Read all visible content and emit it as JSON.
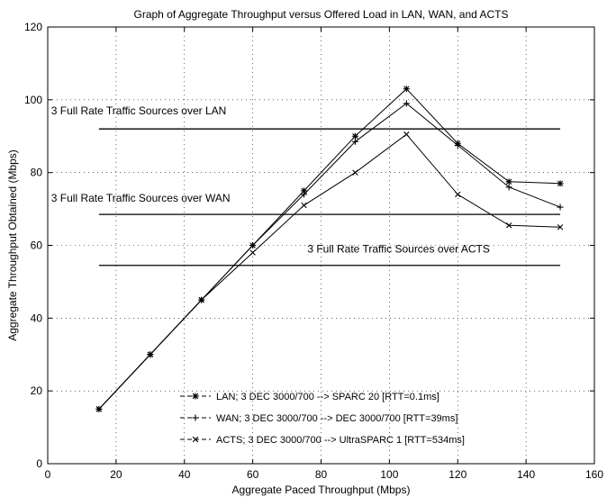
{
  "chart_data": {
    "type": "line",
    "title": "Graph of Aggregate Throughput versus Offered Load in LAN, WAN, and ACTS",
    "xlabel": "Aggregate Paced Throughput (Mbps)",
    "ylabel": "Aggregate Throughput Obtained (Mbps)",
    "xlim": [
      0,
      160
    ],
    "ylim": [
      0,
      120
    ],
    "xticks": [
      0,
      20,
      40,
      60,
      80,
      100,
      120,
      140,
      160
    ],
    "yticks": [
      0,
      20,
      40,
      60,
      80,
      100,
      120
    ],
    "grid": true,
    "legend_position": "bottom-center",
    "series": [
      {
        "name": "LAN; 3 DEC 3000/700 --> SPARC 20 [RTT=0.1ms]",
        "legend_label": "- -*- - LAN; 3 DEC 3000/700 --> SPARC 20 [RTT=0.1ms]",
        "marker": "*",
        "x": [
          15,
          30,
          45,
          60,
          75,
          90,
          105,
          120,
          135,
          150
        ],
        "y": [
          15,
          30,
          45,
          60,
          75,
          90,
          103,
          88,
          77.5,
          77
        ]
      },
      {
        "name": "WAN; 3 DEC 3000/700 --> DEC 3000/700 [RTT=39ms]",
        "legend_label": "- -+- - WAN; 3 DEC 3000/700 --> DEC 3000/700 [RTT=39ms]",
        "marker": "+",
        "x": [
          15,
          30,
          45,
          60,
          75,
          90,
          105,
          120,
          135,
          150
        ],
        "y": [
          15,
          30,
          45,
          60,
          74,
          88.5,
          99,
          87.5,
          76,
          70.5
        ]
      },
      {
        "name": "ACTS; 3 DEC 3000/700 --> UltraSPARC 1 [RTT=534ms]",
        "legend_label": "- -x- - ACTS; 3 DEC 3000/700 --> UltraSPARC 1 [RTT=534ms]",
        "marker": "x",
        "x": [
          15,
          30,
          45,
          60,
          75,
          90,
          105,
          120,
          135,
          150
        ],
        "y": [
          15,
          30,
          45,
          58,
          71,
          80,
          90.5,
          74,
          65.5,
          65
        ]
      }
    ],
    "reference_lines": [
      {
        "label": "3 Full Rate Traffic Sources over LAN",
        "y": 92,
        "x_start": 15,
        "x_end": 150,
        "label_x": 1,
        "label_y": 96
      },
      {
        "label": "3 Full Rate Traffic Sources over WAN",
        "y": 68.5,
        "x_start": 15,
        "x_end": 150,
        "label_x": 1,
        "label_y": 72
      },
      {
        "label": "3 Full Rate Traffic Sources over ACTS",
        "y": 54.5,
        "x_start": 15,
        "x_end": 150,
        "label_x": 76,
        "label_y": 58
      }
    ]
  }
}
